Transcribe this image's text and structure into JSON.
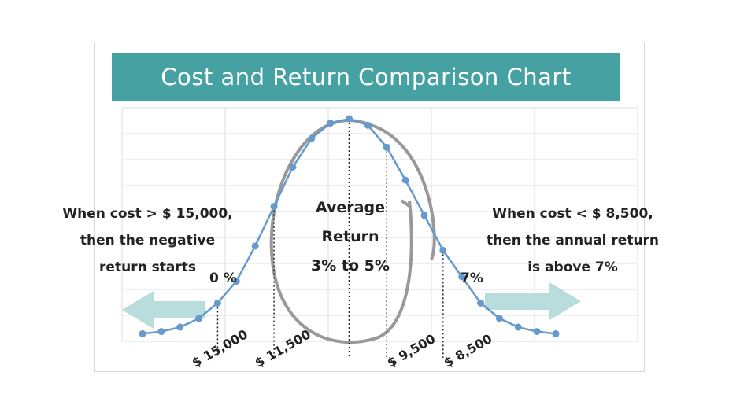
{
  "title": "Cost and Return Comparison Chart",
  "notes": {
    "left": [
      "When cost > $ 15,000,",
      "then the negative",
      "return starts"
    ],
    "center": [
      "Average",
      "Return",
      "3% to 5%"
    ],
    "right": [
      "When cost < $ 8,500,",
      "then the annual return",
      "is above 7%"
    ]
  },
  "markers": {
    "zero_pct": "0 %",
    "seven_pct": "7%"
  },
  "chart_data": {
    "type": "line",
    "title": "Cost and Return Comparison Chart",
    "series": [
      {
        "values": [
          0.02,
          0.03,
          0.05,
          0.09,
          0.16,
          0.26,
          0.42,
          0.6,
          0.78,
          0.91,
          0.98,
          1.0,
          0.97,
          0.87,
          0.72,
          0.56,
          0.4,
          0.28,
          0.16,
          0.09,
          0.05,
          0.03,
          0.02
        ]
      }
    ],
    "cost_labels": [
      "$ 15,000",
      "$ 11,500",
      "$ 9,500",
      "$ 8,500"
    ],
    "grid": true,
    "colors": {
      "line": "#6699cc",
      "banner": "#46a2a2",
      "arrows": "#b9dcdc",
      "oval": "#999999"
    }
  }
}
